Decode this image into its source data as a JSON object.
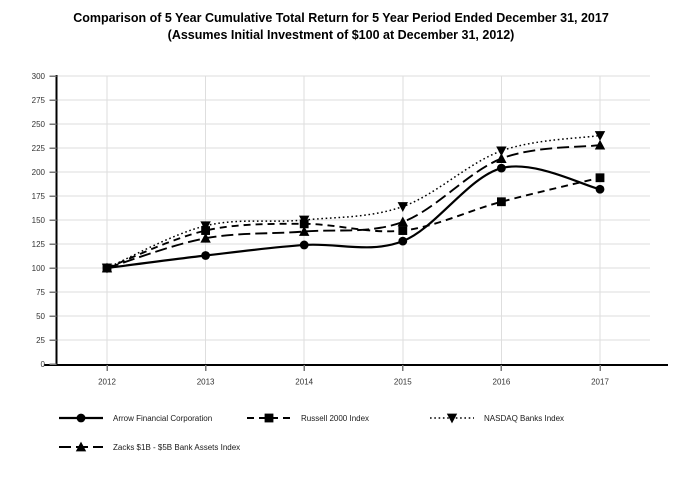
{
  "title": {
    "line1": "Comparison of 5 Year Cumulative Total Return for 5 Year Period Ended December 31, 2017",
    "line2": "(Assumes Initial Investment of $100 at December 31, 2012)"
  },
  "chart_data": {
    "type": "line",
    "categories": [
      "2012",
      "2013",
      "2014",
      "2015",
      "2016",
      "2017"
    ],
    "series": [
      {
        "key": "arrow-financial",
        "name": "Arrow Financial Corporation",
        "marker": "circle",
        "line": "solid",
        "values": [
          100,
          113,
          124,
          128,
          204,
          182
        ]
      },
      {
        "key": "russell-2000",
        "name": "Russell 2000 Index",
        "marker": "square",
        "line": "dashed",
        "values": [
          100,
          139,
          146,
          139,
          169,
          194
        ]
      },
      {
        "key": "nasdaq-banks",
        "name": "NASDAQ Banks Index",
        "marker": "triangle-down",
        "line": "dotted",
        "values": [
          100,
          144,
          150,
          164,
          222,
          238
        ]
      },
      {
        "key": "zacks-bank-assets",
        "name": "Zacks $1B - $5B Bank Assets Index",
        "marker": "triangle-up",
        "line": "long-dash",
        "values": [
          100,
          131,
          138,
          148,
          214,
          228
        ]
      }
    ],
    "xlabel": "",
    "ylabel": "",
    "ylim": [
      0,
      300
    ],
    "ytick_step": 25,
    "grid": true,
    "legend_position": "bottom",
    "colors": {
      "series": "#000000",
      "grid": "#dedede",
      "axis": "#000000",
      "tick": "#777777",
      "label": "#333333"
    }
  }
}
